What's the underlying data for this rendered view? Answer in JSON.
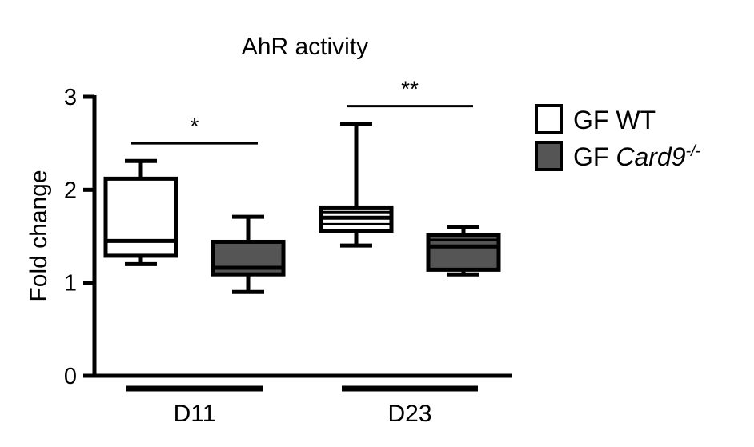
{
  "chart_data": {
    "type": "box",
    "title": "AhR activity",
    "xlabel": "",
    "ylabel": "Fold change",
    "ylim": [
      0,
      3
    ],
    "yticks": [
      0,
      1,
      2,
      3
    ],
    "ytick_labels": [
      "0",
      "1",
      "2",
      "3"
    ],
    "categories": [
      "D11",
      "D23"
    ],
    "legend": {
      "placement": "right",
      "entries": [
        {
          "name": "GF WT",
          "prefix": "GF WT",
          "italic": "",
          "sup": "",
          "color": "#ffffff"
        },
        {
          "name": "GF Card9-/-",
          "prefix": "GF ",
          "italic": "Card9",
          "sup": "-/-",
          "color": "#555555"
        }
      ]
    },
    "series": [
      {
        "name": "GF WT",
        "color": "#ffffff",
        "boxes": [
          {
            "category": "D11",
            "min": 1.2,
            "q1": 1.29,
            "median": 1.45,
            "q3": 2.12,
            "max": 2.31
          },
          {
            "category": "D23",
            "min": 1.4,
            "q1": 1.56,
            "median": 1.7,
            "q3": 1.81,
            "max": 2.71,
            "inner_lines": [
              1.63,
              1.76
            ]
          }
        ]
      },
      {
        "name": "GF Card9-/-",
        "color": "#555555",
        "boxes": [
          {
            "category": "D11",
            "min": 0.9,
            "q1": 1.09,
            "median": 1.16,
            "q3": 1.44,
            "max": 1.71
          },
          {
            "category": "D23",
            "min": 1.09,
            "q1": 1.14,
            "median": 1.39,
            "q3": 1.51,
            "max": 1.6,
            "inner_lines": [
              1.46
            ]
          }
        ]
      }
    ],
    "annotations": [
      {
        "category": "D11",
        "text": "*",
        "y": 2.5
      },
      {
        "category": "D23",
        "text": "**",
        "y": 2.9
      }
    ]
  }
}
